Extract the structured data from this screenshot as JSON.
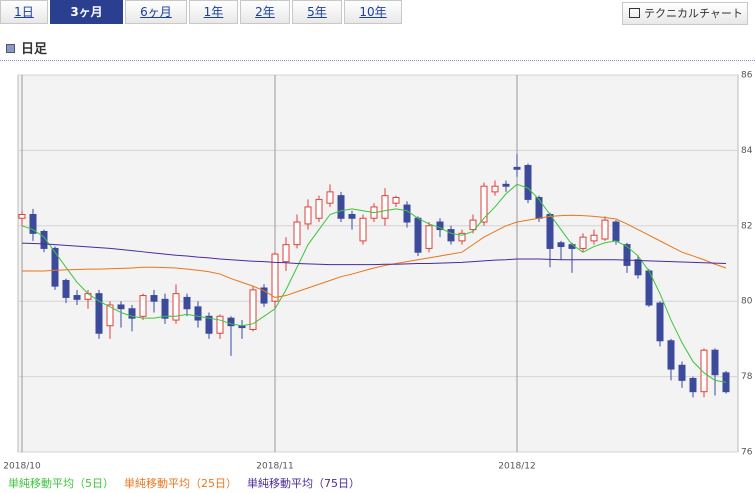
{
  "ui": {
    "tabs": [
      "1日",
      "3ヶ月",
      "6ヶ月",
      "1年",
      "2年",
      "5年",
      "10年"
    ],
    "active_tab": 1,
    "button": "テクニカルチャート",
    "section_title": "日足"
  },
  "chart_data": {
    "type": "candlestick",
    "categories": [
      "2018/10",
      null,
      null,
      null,
      null,
      null,
      null,
      null,
      null,
      null,
      null,
      null,
      null,
      null,
      null,
      null,
      null,
      null,
      null,
      null,
      null,
      null,
      null,
      "2018/11",
      null,
      null,
      null,
      null,
      null,
      null,
      null,
      null,
      null,
      null,
      null,
      null,
      null,
      null,
      null,
      null,
      null,
      null,
      null,
      null,
      null,
      "2018/12",
      null,
      null,
      null,
      null,
      null,
      null,
      null,
      null,
      null,
      null,
      null,
      null,
      null,
      null,
      null,
      null,
      null,
      null,
      null
    ],
    "open": [
      82.2,
      82.3,
      81.85,
      81.4,
      80.55,
      80.15,
      80.05,
      80.2,
      79.35,
      79.9,
      79.8,
      79.6,
      80.15,
      80.05,
      79.5,
      80.1,
      79.85,
      79.6,
      79.15,
      79.55,
      79.35,
      79.25,
      80.35,
      80.0,
      81.05,
      81.5,
      82.05,
      82.2,
      82.6,
      82.8,
      82.3,
      81.6,
      82.2,
      82.2,
      82.6,
      82.55,
      82.2,
      81.4,
      82.1,
      81.9,
      81.6,
      81.9,
      82.1,
      82.9,
      83.1,
      83.55,
      83.6,
      82.75,
      82.3,
      81.55,
      81.5,
      81.4,
      81.6,
      81.65,
      82.1,
      81.5,
      81.1,
      80.8,
      79.95,
      78.95,
      78.3,
      77.95,
      77.6,
      78.7,
      78.1
    ],
    "high": [
      82.4,
      82.45,
      81.9,
      81.45,
      80.6,
      80.3,
      80.3,
      80.3,
      80.0,
      80.0,
      79.9,
      80.2,
      80.3,
      80.2,
      80.45,
      80.2,
      80.0,
      79.7,
      79.65,
      79.6,
      79.5,
      80.4,
      80.45,
      81.3,
      81.7,
      82.3,
      82.7,
      82.8,
      83.1,
      82.9,
      82.4,
      82.3,
      82.6,
      83.0,
      82.8,
      82.65,
      82.25,
      82.1,
      82.2,
      82.0,
      81.9,
      82.3,
      83.15,
      83.2,
      83.2,
      83.9,
      83.65,
      82.8,
      82.35,
      81.6,
      81.55,
      81.8,
      81.9,
      82.25,
      82.15,
      81.55,
      81.2,
      80.85,
      80.0,
      79.0,
      78.4,
      78.0,
      78.75,
      78.75,
      78.15
    ],
    "low": [
      82.0,
      81.6,
      81.3,
      80.3,
      79.95,
      79.9,
      79.8,
      79.0,
      79.0,
      79.3,
      79.2,
      79.5,
      79.7,
      79.4,
      79.4,
      79.6,
      79.3,
      79.0,
      79.0,
      78.55,
      79.0,
      79.2,
      79.85,
      79.8,
      80.8,
      81.4,
      81.9,
      82.1,
      82.5,
      82.1,
      81.9,
      81.5,
      82.1,
      82.0,
      82.5,
      81.95,
      81.2,
      81.3,
      81.7,
      81.5,
      81.5,
      81.8,
      82.0,
      82.8,
      82.9,
      83.3,
      82.6,
      82.1,
      80.9,
      81.1,
      80.75,
      81.3,
      81.5,
      81.6,
      81.5,
      80.75,
      80.6,
      79.85,
      78.8,
      77.9,
      77.7,
      77.45,
      77.45,
      77.5,
      77.55
    ],
    "close": [
      82.3,
      81.8,
      81.4,
      80.4,
      80.1,
      80.05,
      80.2,
      79.15,
      79.9,
      79.8,
      79.55,
      80.15,
      80.0,
      79.55,
      80.2,
      79.8,
      79.5,
      79.15,
      79.6,
      79.35,
      79.3,
      80.3,
      79.95,
      81.25,
      81.5,
      82.1,
      82.5,
      82.7,
      82.9,
      82.2,
      82.2,
      82.2,
      82.5,
      82.8,
      82.75,
      82.1,
      81.3,
      82.0,
      81.9,
      81.6,
      81.8,
      82.15,
      83.05,
      83.05,
      83.05,
      83.5,
      82.7,
      82.2,
      81.4,
      81.45,
      81.4,
      81.7,
      81.75,
      82.15,
      81.6,
      80.95,
      80.7,
      79.9,
      78.95,
      78.2,
      77.9,
      77.6,
      78.7,
      78.05,
      77.6
    ],
    "up_color": "#e0413a",
    "down_color": "#3c4a9c",
    "series": [
      {
        "name": "単純移動平均（5日）",
        "color": "#3cc43c",
        "values": [
          82.0,
          81.9,
          81.7,
          81.3,
          80.9,
          80.5,
          80.2,
          80.0,
          79.85,
          79.7,
          79.6,
          79.55,
          79.55,
          79.6,
          79.6,
          79.65,
          79.6,
          79.55,
          79.5,
          79.4,
          79.35,
          79.4,
          79.6,
          79.8,
          80.3,
          80.9,
          81.5,
          81.9,
          82.3,
          82.4,
          82.45,
          82.4,
          82.35,
          82.4,
          82.45,
          82.4,
          82.2,
          82.05,
          81.95,
          81.8,
          81.75,
          81.85,
          82.2,
          82.5,
          82.85,
          83.1,
          83.0,
          82.7,
          82.3,
          81.9,
          81.5,
          81.3,
          81.45,
          81.55,
          81.6,
          81.45,
          81.2,
          80.8,
          80.2,
          79.5,
          78.9,
          78.4,
          78.1,
          77.9,
          77.85
        ]
      },
      {
        "name": "単純移動平均（25日）",
        "color": "#e8761e",
        "values": [
          80.8,
          80.8,
          80.8,
          80.82,
          80.83,
          80.84,
          80.85,
          80.85,
          80.86,
          80.87,
          80.88,
          80.9,
          80.9,
          80.89,
          80.88,
          80.85,
          80.82,
          80.78,
          80.72,
          80.6,
          80.5,
          80.4,
          80.28,
          80.1,
          80.15,
          80.25,
          80.35,
          80.45,
          80.55,
          80.65,
          80.72,
          80.8,
          80.88,
          80.95,
          81.0,
          81.05,
          81.1,
          81.15,
          81.2,
          81.25,
          81.3,
          81.5,
          81.7,
          81.85,
          82.0,
          82.1,
          82.15,
          82.2,
          82.25,
          82.27,
          82.28,
          82.27,
          82.25,
          82.22,
          82.18,
          82.05,
          81.9,
          81.75,
          81.6,
          81.45,
          81.3,
          81.2,
          81.1,
          80.98,
          80.88
        ]
      },
      {
        "name": "単純移動平均（75日）",
        "color": "#4b2a99",
        "values": [
          81.54,
          81.53,
          81.52,
          81.5,
          81.48,
          81.46,
          81.44,
          81.42,
          81.4,
          81.37,
          81.34,
          81.31,
          81.28,
          81.25,
          81.22,
          81.2,
          81.17,
          81.15,
          81.12,
          81.1,
          81.08,
          81.06,
          81.05,
          81.03,
          81.02,
          81.0,
          80.99,
          80.98,
          80.97,
          80.97,
          80.97,
          80.97,
          80.97,
          80.98,
          80.98,
          80.99,
          81.0,
          81.0,
          81.01,
          81.02,
          81.03,
          81.05,
          81.07,
          81.09,
          81.1,
          81.12,
          81.12,
          81.12,
          81.11,
          81.1,
          81.1,
          81.1,
          81.1,
          81.1,
          81.1,
          81.09,
          81.08,
          81.07,
          81.06,
          81.05,
          81.04,
          81.03,
          81.02,
          81.01,
          81.0
        ]
      }
    ],
    "ylim": [
      76,
      86
    ],
    "yticks": [
      76,
      78,
      80,
      82,
      84,
      86
    ],
    "grid": true
  }
}
